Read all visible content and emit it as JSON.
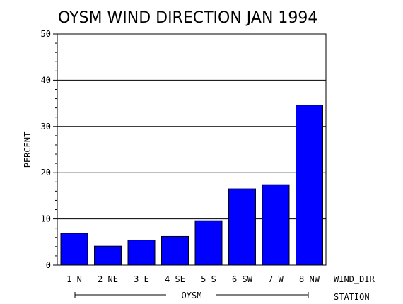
{
  "chart_data": {
    "type": "bar",
    "title": "OYSM WIND DIRECTION JAN 1994",
    "ylabel": "PERCENT",
    "xlabel": "WIND_DIR",
    "group_axis_label": "STATION",
    "group_label": "OYSM",
    "categories": [
      "1 N",
      "2 NE",
      "3 E",
      "4 SE",
      "5 S",
      "6 SW",
      "7 W",
      "8 NW"
    ],
    "values": [
      6.9,
      4.1,
      5.4,
      6.2,
      9.6,
      16.5,
      17.4,
      34.6
    ],
    "ylim": [
      0,
      50
    ],
    "yticks": [
      0,
      10,
      20,
      30,
      40,
      50
    ],
    "grid": true,
    "bar_color": "#0000ff"
  }
}
